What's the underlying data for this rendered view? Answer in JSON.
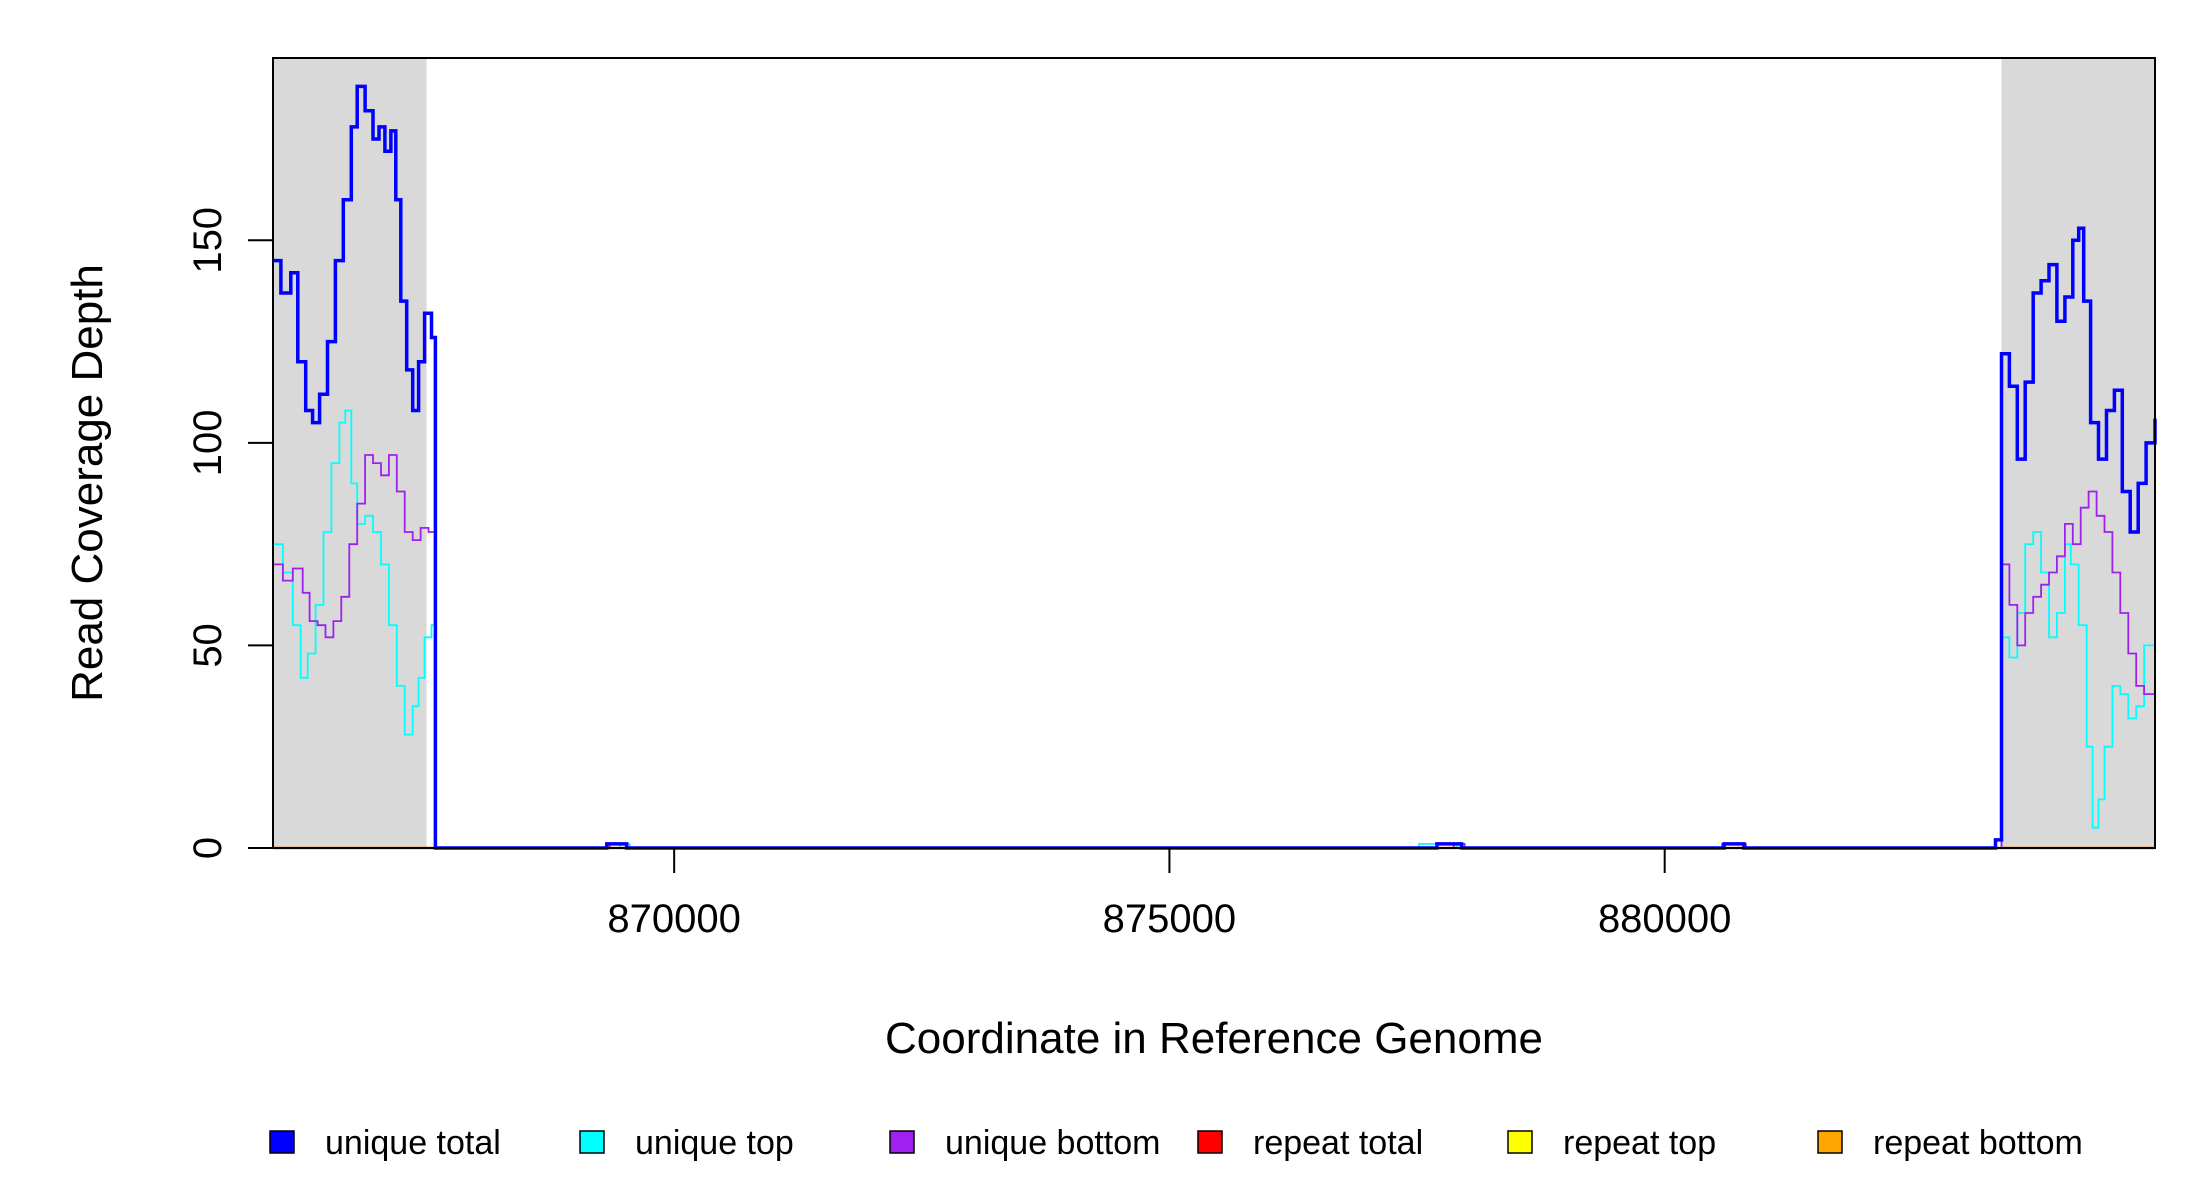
{
  "chart_data": {
    "type": "line",
    "title": "",
    "xlabel": "Coordinate in Reference Genome",
    "ylabel": "Read Coverage Depth",
    "xlim": [
      865950,
      884950
    ],
    "ylim": [
      0,
      195
    ],
    "x_ticks": [
      870000,
      875000,
      880000
    ],
    "y_ticks": [
      0,
      50,
      100,
      150
    ],
    "grid": false,
    "legend_position": "bottom",
    "shaded_regions": [
      {
        "x_start": 865950,
        "x_end": 867500,
        "color": "#d9d9d9"
      },
      {
        "x_start": 883400,
        "x_end": 884950,
        "color": "#d9d9d9"
      }
    ],
    "series": [
      {
        "name": "unique total",
        "color": "#0000ff",
        "points": [
          [
            865950,
            145
          ],
          [
            866030,
            137
          ],
          [
            866130,
            142
          ],
          [
            866200,
            120
          ],
          [
            866280,
            108
          ],
          [
            866350,
            105
          ],
          [
            866420,
            112
          ],
          [
            866500,
            125
          ],
          [
            866580,
            145
          ],
          [
            866660,
            160
          ],
          [
            866740,
            178
          ],
          [
            866800,
            188
          ],
          [
            866880,
            182
          ],
          [
            866960,
            175
          ],
          [
            867020,
            178
          ],
          [
            867080,
            172
          ],
          [
            867140,
            177
          ],
          [
            867190,
            160
          ],
          [
            867240,
            135
          ],
          [
            867300,
            118
          ],
          [
            867360,
            108
          ],
          [
            867420,
            120
          ],
          [
            867480,
            132
          ],
          [
            867550,
            126
          ],
          [
            867590,
            0
          ],
          [
            868000,
            0
          ],
          [
            869320,
            1
          ],
          [
            869520,
            0
          ],
          [
            877600,
            0
          ],
          [
            877700,
            1
          ],
          [
            877850,
            1
          ],
          [
            877950,
            0
          ],
          [
            880550,
            0
          ],
          [
            880600,
            1
          ],
          [
            880800,
            0
          ],
          [
            883300,
            0
          ],
          [
            883340,
            2
          ],
          [
            883400,
            122
          ],
          [
            883480,
            114
          ],
          [
            883560,
            96
          ],
          [
            883640,
            115
          ],
          [
            883720,
            137
          ],
          [
            883800,
            140
          ],
          [
            883880,
            144
          ],
          [
            883960,
            130
          ],
          [
            884040,
            136
          ],
          [
            884120,
            150
          ],
          [
            884180,
            153
          ],
          [
            884230,
            135
          ],
          [
            884300,
            105
          ],
          [
            884380,
            96
          ],
          [
            884460,
            108
          ],
          [
            884540,
            113
          ],
          [
            884620,
            88
          ],
          [
            884700,
            78
          ],
          [
            884780,
            90
          ],
          [
            884860,
            100
          ],
          [
            884950,
            106
          ]
        ]
      },
      {
        "name": "unique top",
        "color": "#00ffff",
        "points": [
          [
            865950,
            75
          ],
          [
            866050,
            68
          ],
          [
            866150,
            55
          ],
          [
            866230,
            42
          ],
          [
            866300,
            48
          ],
          [
            866380,
            60
          ],
          [
            866460,
            78
          ],
          [
            866540,
            95
          ],
          [
            866620,
            105
          ],
          [
            866680,
            108
          ],
          [
            866740,
            90
          ],
          [
            866800,
            80
          ],
          [
            866880,
            82
          ],
          [
            866960,
            78
          ],
          [
            867040,
            70
          ],
          [
            867120,
            55
          ],
          [
            867200,
            40
          ],
          [
            867280,
            28
          ],
          [
            867360,
            35
          ],
          [
            867420,
            42
          ],
          [
            867480,
            52
          ],
          [
            867550,
            55
          ],
          [
            867590,
            0
          ],
          [
            869300,
            0
          ],
          [
            869450,
            1
          ],
          [
            869550,
            0
          ],
          [
            877520,
            1
          ],
          [
            877750,
            1
          ],
          [
            877900,
            0
          ],
          [
            883300,
            0
          ],
          [
            883400,
            52
          ],
          [
            883480,
            47
          ],
          [
            883560,
            58
          ],
          [
            883640,
            75
          ],
          [
            883720,
            78
          ],
          [
            883800,
            68
          ],
          [
            883880,
            52
          ],
          [
            883960,
            58
          ],
          [
            884040,
            75
          ],
          [
            884100,
            70
          ],
          [
            884180,
            55
          ],
          [
            884260,
            25
          ],
          [
            884320,
            5
          ],
          [
            884380,
            12
          ],
          [
            884440,
            25
          ],
          [
            884520,
            40
          ],
          [
            884600,
            38
          ],
          [
            884680,
            32
          ],
          [
            884760,
            35
          ],
          [
            884840,
            50
          ],
          [
            884950,
            60
          ]
        ]
      },
      {
        "name": "unique bottom",
        "color": "#a020f0",
        "points": [
          [
            865950,
            70
          ],
          [
            866050,
            66
          ],
          [
            866150,
            69
          ],
          [
            866250,
            63
          ],
          [
            866320,
            56
          ],
          [
            866400,
            55
          ],
          [
            866480,
            52
          ],
          [
            866560,
            56
          ],
          [
            866640,
            62
          ],
          [
            866720,
            75
          ],
          [
            866800,
            85
          ],
          [
            866880,
            97
          ],
          [
            866960,
            95
          ],
          [
            867040,
            92
          ],
          [
            867120,
            97
          ],
          [
            867200,
            88
          ],
          [
            867280,
            78
          ],
          [
            867360,
            76
          ],
          [
            867440,
            79
          ],
          [
            867520,
            78
          ],
          [
            867590,
            0
          ],
          [
            869300,
            0
          ],
          [
            869350,
            1
          ],
          [
            869530,
            0
          ],
          [
            877800,
            0
          ],
          [
            877870,
            1
          ],
          [
            877980,
            0
          ],
          [
            880500,
            0
          ],
          [
            880580,
            1
          ],
          [
            880820,
            0
          ],
          [
            883300,
            0
          ],
          [
            883400,
            70
          ],
          [
            883480,
            60
          ],
          [
            883560,
            50
          ],
          [
            883640,
            58
          ],
          [
            883720,
            62
          ],
          [
            883800,
            65
          ],
          [
            883880,
            68
          ],
          [
            883960,
            72
          ],
          [
            884040,
            80
          ],
          [
            884120,
            75
          ],
          [
            884200,
            84
          ],
          [
            884280,
            88
          ],
          [
            884360,
            82
          ],
          [
            884440,
            78
          ],
          [
            884520,
            68
          ],
          [
            884600,
            58
          ],
          [
            884680,
            48
          ],
          [
            884760,
            40
          ],
          [
            884840,
            38
          ],
          [
            884950,
            45
          ]
        ]
      },
      {
        "name": "repeat total",
        "color": "#ff0000",
        "points": [
          [
            865950,
            0
          ],
          [
            884950,
            0
          ]
        ]
      },
      {
        "name": "repeat top",
        "color": "#ffff00",
        "points": [
          [
            865950,
            0
          ],
          [
            884950,
            0
          ]
        ]
      },
      {
        "name": "repeat bottom",
        "color": "#ffa500",
        "points": [
          [
            865950,
            0
          ],
          [
            884950,
            0
          ]
        ]
      }
    ]
  }
}
